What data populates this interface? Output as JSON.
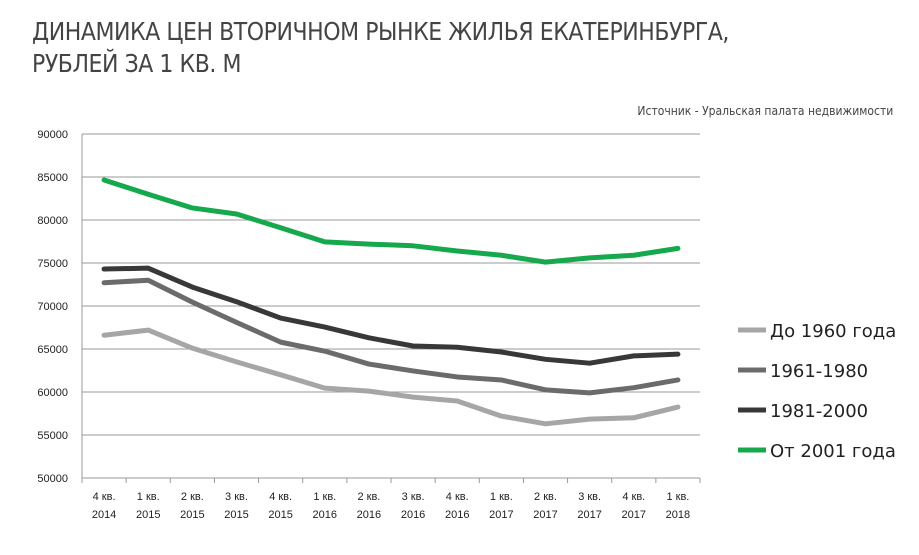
{
  "chart_data": {
    "type": "line",
    "title": "ДИНАМИКА ЦЕН ВТОРИЧНОМ РЫНКЕ ЖИЛЬЯ ЕКАТЕРИНБУРГА, РУБЛЕЙ ЗА 1 КВ. М",
    "title_lines": [
      "ДИНАМИКА ЦЕН ВТОРИЧНОМ РЫНКЕ ЖИЛЬЯ ЕКАТЕРИНБУРГА,",
      "РУБЛЕЙ ЗА 1 КВ. М"
    ],
    "source": "Источник - Уральская палата недвижимости",
    "categories": [
      [
        "4 кв.",
        "2014"
      ],
      [
        "1 кв.",
        "2015"
      ],
      [
        "2 кв.",
        "2015"
      ],
      [
        "3 кв.",
        "2015"
      ],
      [
        "4 кв.",
        "2015"
      ],
      [
        "1 кв.",
        "2016"
      ],
      [
        "2 кв.",
        "2016"
      ],
      [
        "3 кв.",
        "2016"
      ],
      [
        "4 кв.",
        "2016"
      ],
      [
        "1 кв.",
        "2017"
      ],
      [
        "2 кв.",
        "2017"
      ],
      [
        "3 кв.",
        "2017"
      ],
      [
        "4 кв.",
        "2017"
      ],
      [
        "1 кв.",
        "2018"
      ]
    ],
    "ylim": [
      50000,
      90000
    ],
    "yticks": [
      50000,
      55000,
      60000,
      65000,
      70000,
      75000,
      80000,
      85000,
      90000
    ],
    "grid": true,
    "legend_position": "right",
    "series": [
      {
        "name": "До 1960 года",
        "color": "#a6a6a6",
        "values": [
          66600,
          67200,
          65100,
          63500,
          62000,
          60450,
          60100,
          59400,
          58950,
          57200,
          56300,
          56850,
          57000,
          58250
        ]
      },
      {
        "name": "1961-1980",
        "color": "#6b6b6b",
        "values": [
          72700,
          73000,
          70450,
          68100,
          65800,
          64750,
          63250,
          62450,
          61750,
          61400,
          60250,
          59900,
          60500,
          61400
        ]
      },
      {
        "name": "1981-2000",
        "color": "#383838",
        "values": [
          74300,
          74400,
          72200,
          70500,
          68600,
          67550,
          66300,
          65350,
          65200,
          64650,
          63800,
          63350,
          64200,
          64400
        ]
      },
      {
        "name": "От 2001 года",
        "color": "#16a84d",
        "values": [
          84650,
          83000,
          81400,
          80700,
          79100,
          77450,
          77200,
          77000,
          76400,
          75900,
          75100,
          75600,
          75900,
          76700
        ]
      }
    ]
  }
}
